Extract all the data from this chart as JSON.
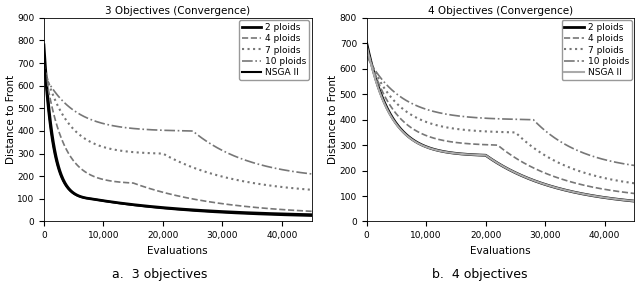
{
  "left": {
    "title": "3 Objectives (Convergence)",
    "xlabel": "Evaluations",
    "ylabel": "Distance to Front",
    "xlim": [
      0,
      45000
    ],
    "ylim": [
      0,
      900
    ],
    "yticks": [
      0,
      100,
      200,
      300,
      400,
      500,
      600,
      700,
      800,
      900
    ],
    "xticks": [
      0,
      10000,
      20000,
      30000,
      40000
    ],
    "series": [
      {
        "name": "2 ploids",
        "start": 780,
        "mid": 100,
        "end": 30,
        "knee": 8000,
        "style": "solid",
        "color": "#000000",
        "lw": 2.0
      },
      {
        "name": "4 ploids",
        "start": 700,
        "mid": 170,
        "end": 45,
        "knee": 15000,
        "style": "dashed",
        "color": "#777777",
        "lw": 1.2
      },
      {
        "name": "7 ploids",
        "start": 680,
        "mid": 300,
        "end": 140,
        "knee": 20000,
        "style": "dotted",
        "color": "#777777",
        "lw": 1.5
      },
      {
        "name": "10 ploids",
        "start": 650,
        "mid": 400,
        "end": 210,
        "knee": 25000,
        "style": "dashdot",
        "color": "#777777",
        "lw": 1.2
      },
      {
        "name": "NSGA II",
        "start": 720,
        "mid": 100,
        "end": 25,
        "knee": 8000,
        "style": "solid",
        "color": "#000000",
        "lw": 1.5
      }
    ]
  },
  "right": {
    "title": "4 Objectives (Convergence)",
    "xlabel": "Evaluations",
    "ylabel": "Distance to Front",
    "xlim": [
      0,
      45000
    ],
    "ylim": [
      0,
      800
    ],
    "yticks": [
      0,
      100,
      200,
      300,
      400,
      500,
      600,
      700,
      800
    ],
    "xticks": [
      0,
      10000,
      20000,
      30000,
      40000
    ],
    "series": [
      {
        "name": "2 ploids",
        "start": 700,
        "mid": 260,
        "end": 80,
        "knee": 20000,
        "style": "solid",
        "color": "#000000",
        "lw": 2.0
      },
      {
        "name": "4 ploids",
        "start": 685,
        "mid": 300,
        "end": 110,
        "knee": 22000,
        "style": "dashed",
        "color": "#777777",
        "lw": 1.2
      },
      {
        "name": "7 ploids",
        "start": 665,
        "mid": 350,
        "end": 150,
        "knee": 25000,
        "style": "dotted",
        "color": "#777777",
        "lw": 1.5
      },
      {
        "name": "10 ploids",
        "start": 650,
        "mid": 400,
        "end": 220,
        "knee": 28000,
        "style": "dashdot",
        "color": "#777777",
        "lw": 1.2
      },
      {
        "name": "NSGA II",
        "start": 690,
        "mid": 260,
        "end": 80,
        "knee": 20000,
        "style": "solid",
        "color": "#aaaaaa",
        "lw": 1.5
      }
    ]
  },
  "sublabels": [
    "a.  3 objectives",
    "b.  4 objectives"
  ]
}
